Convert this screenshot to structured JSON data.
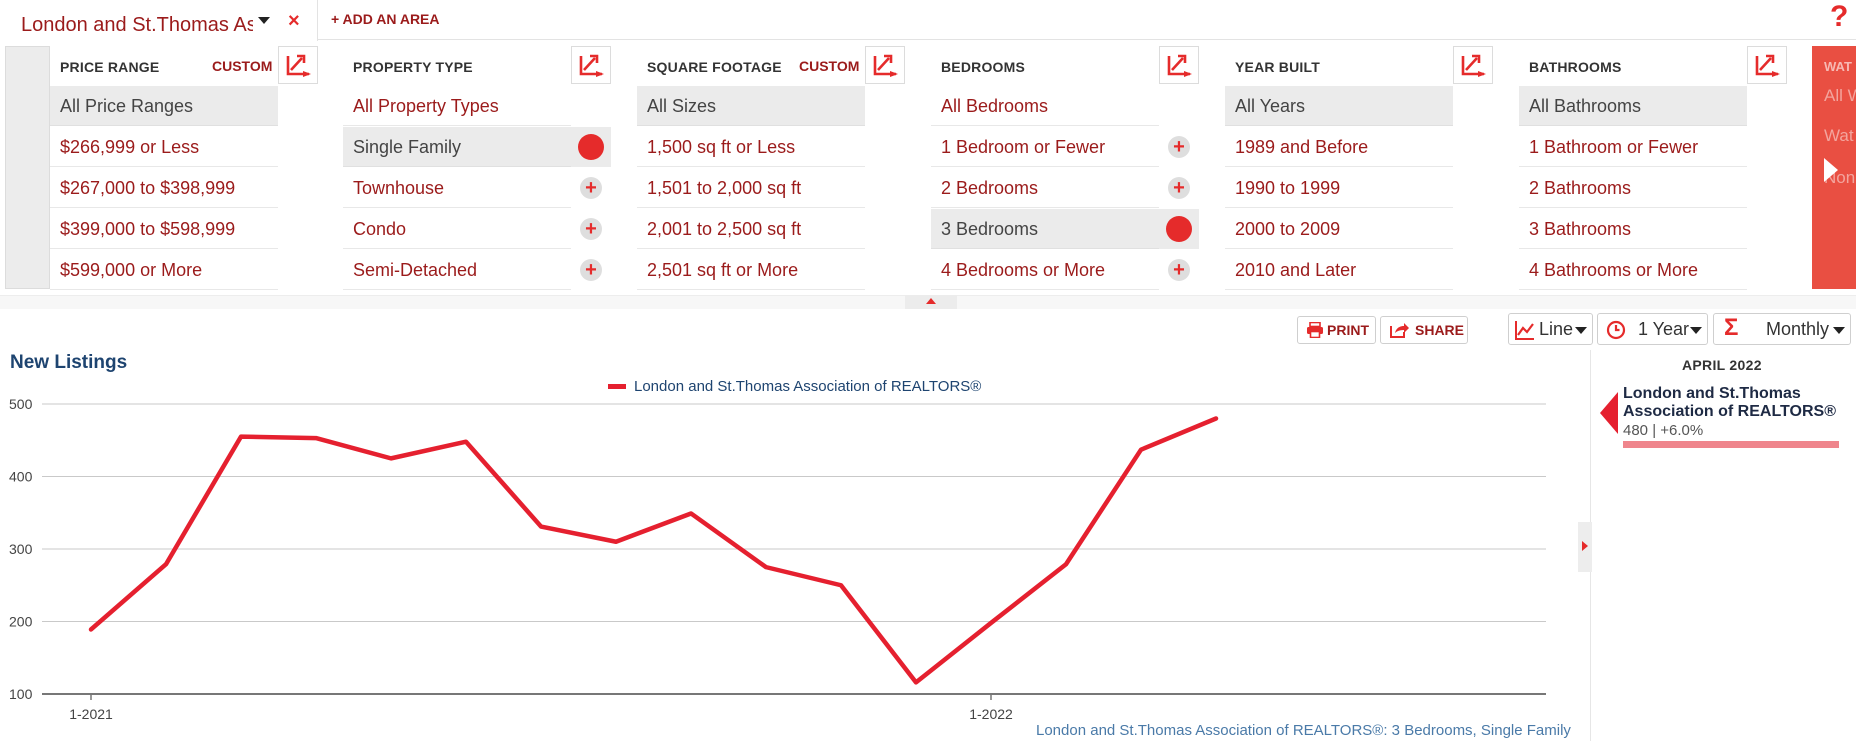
{
  "area_bar": {
    "area_name": "London and St.Thomas Association of REALTORS®",
    "close_glyph": "×",
    "add_area": "+ ADD AN AREA",
    "help_glyph": "?"
  },
  "filters": [
    {
      "key": "price",
      "header": "PRICE RANGE",
      "custom": "CUSTOM",
      "options": [
        "All Price Ranges",
        "$266,999 or Less",
        "$267,000 to $398,999",
        "$399,000 to $598,999",
        "$599,000 or More"
      ],
      "selected": 0,
      "addable": false
    },
    {
      "key": "property",
      "header": "PROPERTY TYPE",
      "custom": "",
      "options": [
        "All Property Types",
        "Single Family",
        "Townhouse",
        "Condo",
        "Semi-Detached"
      ],
      "selected": 1,
      "addable": true
    },
    {
      "key": "sqft",
      "header": "SQUARE FOOTAGE",
      "custom": "CUSTOM",
      "options": [
        "All Sizes",
        "1,500 sq ft or Less",
        "1,501 to 2,000 sq ft",
        "2,001 to 2,500 sq ft",
        "2,501 sq ft or More"
      ],
      "selected": 0,
      "addable": false
    },
    {
      "key": "bedrooms",
      "header": "BEDROOMS",
      "custom": "",
      "options": [
        "All Bedrooms",
        "1 Bedroom or Fewer",
        "2 Bedrooms",
        "3 Bedrooms",
        "4 Bedrooms or More"
      ],
      "selected": 3,
      "addable": true
    },
    {
      "key": "year",
      "header": "YEAR BUILT",
      "custom": "",
      "options": [
        "All Years",
        "1989 and Before",
        "1990 to 1999",
        "2000 to 2009",
        "2010 and Later"
      ],
      "selected": 0,
      "addable": false
    },
    {
      "key": "baths",
      "header": "BATHROOMS",
      "custom": "",
      "options": [
        "All Bathrooms",
        "1 Bathroom or Fewer",
        "2 Bathrooms",
        "3 Bathrooms",
        "4 Bathrooms or More"
      ],
      "selected": 0,
      "addable": false
    }
  ],
  "right_partial": {
    "header": "WAT",
    "items": [
      "All W",
      "Wat",
      "Non"
    ]
  },
  "toolbar": {
    "print": "PRINT",
    "share": "SHARE",
    "chart_type": "Line",
    "period": "1 Year",
    "aggregation": "Monthly"
  },
  "chart_title": "New Listings",
  "chart_data": {
    "type": "line",
    "series": [
      {
        "name": "London and St.Thomas Association of REALTORS®",
        "color": "#e5202f",
        "values": [
          189,
          279,
          455,
          453,
          425,
          448,
          331,
          310,
          349,
          275,
          250,
          116,
          198,
          279,
          437,
          480
        ]
      }
    ],
    "x": [
      "1-2021",
      "2-2021",
      "3-2021",
      "4-2021",
      "5-2021",
      "6-2021",
      "7-2021",
      "8-2021",
      "9-2021",
      "10-2021",
      "11-2021",
      "12-2021",
      "1-2022",
      "2-2022",
      "3-2022",
      "4-2022"
    ],
    "x_tick_labels": [
      "1-2021",
      "1-2022"
    ],
    "y_ticks": [
      100,
      200,
      300,
      400,
      500
    ],
    "ylim": [
      100,
      500
    ],
    "grid": true,
    "legend": "top-center"
  },
  "footer_note": "London and St.Thomas Association of REALTORS®: 3 Bedrooms, Single Family",
  "tooltip": {
    "month": "APRIL 2022",
    "name": "London and St.Thomas Association of REALTORS®",
    "value_text": "480 | +6.0%"
  }
}
